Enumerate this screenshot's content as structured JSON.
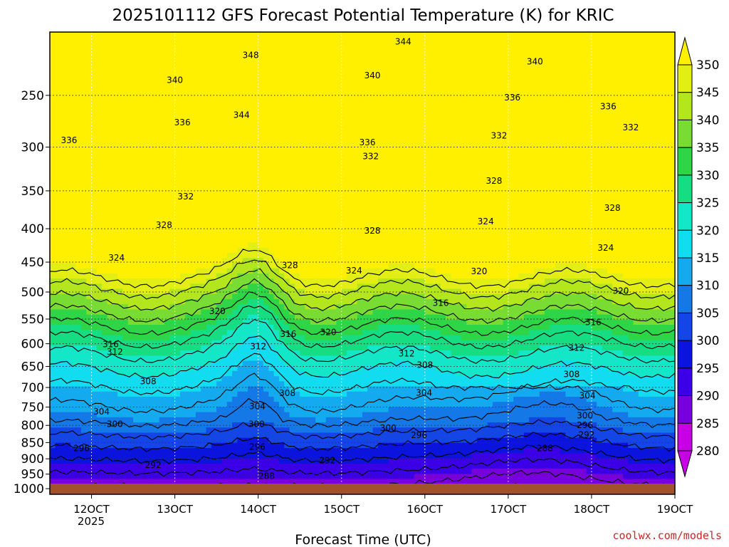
{
  "chart_data": {
    "type": "heatmap",
    "title": "2025101112 GFS Forecast Potential Temperature (K) for KRIC",
    "xlabel": "Forecast Time (UTC)",
    "ylabel": "",
    "credit": "coolwx.com/models",
    "x_ticks": [
      "12OCT",
      "13OCT",
      "14OCT",
      "15OCT",
      "16OCT",
      "17OCT",
      "18OCT",
      "19OCT"
    ],
    "x_year_label": "2025",
    "x_range_days": [
      11.5,
      19.0
    ],
    "y_ticks": [
      250,
      300,
      350,
      400,
      450,
      500,
      550,
      600,
      650,
      700,
      750,
      800,
      850,
      900,
      950,
      1000
    ],
    "y_range_hpa": [
      200,
      1020
    ],
    "colorbar": {
      "ticks": [
        350,
        345,
        340,
        335,
        330,
        325,
        320,
        315,
        310,
        305,
        300,
        295,
        290,
        285,
        280
      ],
      "colors": [
        "#fff000",
        "#e2ee14",
        "#b4e61e",
        "#79dc32",
        "#2ed546",
        "#16dc82",
        "#14e6c8",
        "#12dcf0",
        "#14aaf0",
        "#1478e6",
        "#1446e6",
        "#0a14dc",
        "#3c00e6",
        "#7800dc",
        "#c800e6"
      ]
    },
    "contour_labels": [
      {
        "value": "348",
        "day": 13.91,
        "p": 217
      },
      {
        "value": "344",
        "day": 15.74,
        "p": 207
      },
      {
        "value": "340",
        "day": 17.32,
        "p": 222
      },
      {
        "value": "340",
        "day": 13.0,
        "p": 237
      },
      {
        "value": "340",
        "day": 15.37,
        "p": 233
      },
      {
        "value": "344",
        "day": 13.8,
        "p": 268
      },
      {
        "value": "336",
        "day": 17.05,
        "p": 252
      },
      {
        "value": "336",
        "day": 18.2,
        "p": 260
      },
      {
        "value": "336",
        "day": 13.09,
        "p": 275
      },
      {
        "value": "332",
        "day": 18.47,
        "p": 280
      },
      {
        "value": "332",
        "day": 16.89,
        "p": 288
      },
      {
        "value": "336",
        "day": 15.31,
        "p": 295
      },
      {
        "value": "336",
        "day": 11.73,
        "p": 293
      },
      {
        "value": "332",
        "day": 15.35,
        "p": 310
      },
      {
        "value": "328",
        "day": 16.83,
        "p": 338
      },
      {
        "value": "332",
        "day": 13.13,
        "p": 357
      },
      {
        "value": "328",
        "day": 18.25,
        "p": 372
      },
      {
        "value": "328",
        "day": 12.87,
        "p": 395
      },
      {
        "value": "324",
        "day": 16.73,
        "p": 390
      },
      {
        "value": "328",
        "day": 15.37,
        "p": 403
      },
      {
        "value": "324",
        "day": 12.3,
        "p": 443
      },
      {
        "value": "324",
        "day": 18.17,
        "p": 428
      },
      {
        "value": "328",
        "day": 14.38,
        "p": 455
      },
      {
        "value": "324",
        "day": 15.15,
        "p": 464
      },
      {
        "value": "320",
        "day": 16.65,
        "p": 465
      },
      {
        "value": "320",
        "day": 18.35,
        "p": 498
      },
      {
        "value": "320",
        "day": 13.51,
        "p": 535
      },
      {
        "value": "316",
        "day": 16.19,
        "p": 520
      },
      {
        "value": "316",
        "day": 18.02,
        "p": 556
      },
      {
        "value": "316",
        "day": 14.36,
        "p": 580
      },
      {
        "value": "320",
        "day": 14.84,
        "p": 576
      },
      {
        "value": "316",
        "day": 12.23,
        "p": 601
      },
      {
        "value": "312",
        "day": 12.28,
        "p": 617
      },
      {
        "value": "312",
        "day": 14.0,
        "p": 606
      },
      {
        "value": "312",
        "day": 15.78,
        "p": 621
      },
      {
        "value": "312",
        "day": 17.82,
        "p": 609
      },
      {
        "value": "308",
        "day": 16.0,
        "p": 647
      },
      {
        "value": "308",
        "day": 12.68,
        "p": 685
      },
      {
        "value": "308",
        "day": 17.76,
        "p": 668
      },
      {
        "value": "308",
        "day": 14.35,
        "p": 714
      },
      {
        "value": "304",
        "day": 15.99,
        "p": 713
      },
      {
        "value": "304",
        "day": 17.95,
        "p": 720
      },
      {
        "value": "304",
        "day": 12.12,
        "p": 762
      },
      {
        "value": "304",
        "day": 13.99,
        "p": 748
      },
      {
        "value": "300",
        "day": 17.92,
        "p": 773
      },
      {
        "value": "296",
        "day": 17.92,
        "p": 800
      },
      {
        "value": "300",
        "day": 12.28,
        "p": 797
      },
      {
        "value": "300",
        "day": 13.98,
        "p": 797
      },
      {
        "value": "300",
        "day": 15.56,
        "p": 808
      },
      {
        "value": "296",
        "day": 15.93,
        "p": 828
      },
      {
        "value": "292",
        "day": 17.94,
        "p": 827
      },
      {
        "value": "296",
        "day": 11.88,
        "p": 868
      },
      {
        "value": "296",
        "day": 13.99,
        "p": 863
      },
      {
        "value": "292",
        "day": 14.83,
        "p": 905
      },
      {
        "value": "288",
        "day": 17.44,
        "p": 868
      },
      {
        "value": "292",
        "day": 12.74,
        "p": 920
      },
      {
        "value": "288",
        "day": 14.1,
        "p": 957
      }
    ]
  }
}
